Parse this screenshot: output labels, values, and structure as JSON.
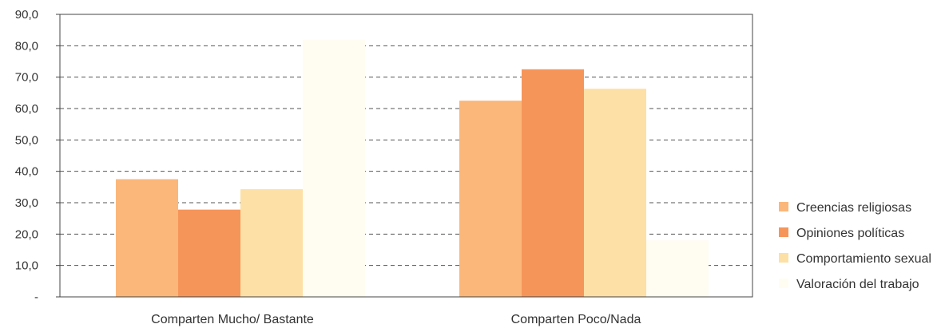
{
  "chart_data": {
    "type": "bar",
    "categories": [
      "Comparten Mucho/ Bastante",
      "Comparten Poco/Nada"
    ],
    "series": [
      {
        "name": "Creencias religiosas",
        "color": "#fbb77a",
        "values": [
          37.5,
          62.5
        ]
      },
      {
        "name": "Opiniones políticas",
        "color": "#f6955a",
        "values": [
          27.8,
          72.5
        ]
      },
      {
        "name": "Comportamiento sexual",
        "color": "#fde0a6",
        "values": [
          34.3,
          66.3
        ]
      },
      {
        "name": "Valoración del trabajo",
        "color": "#fffcf1",
        "values": [
          82.0,
          18.0
        ]
      }
    ],
    "yticks": [
      "-",
      "10,0",
      "20,0",
      "30,0",
      "40,0",
      "50,0",
      "60,0",
      "70,0",
      "80,0",
      "90,0"
    ],
    "ylim": [
      0,
      90
    ],
    "grid": true,
    "legend_position": "right",
    "title": "",
    "xlabel": "",
    "ylabel": ""
  }
}
